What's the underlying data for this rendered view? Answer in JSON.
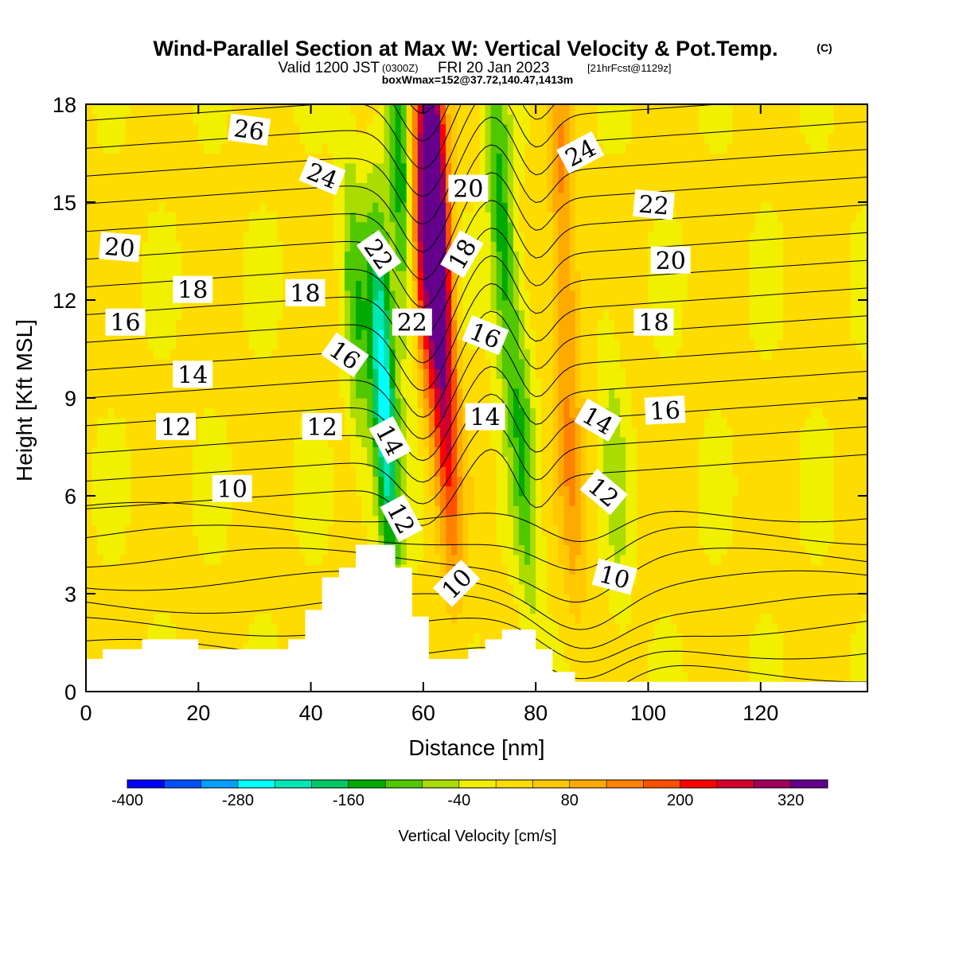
{
  "title": {
    "main": "Wind-Parallel Section at Max W: Vertical Velocity & Pot.Temp.",
    "copyright": "(C)",
    "valid_prefix": "Valid 1200 JST",
    "valid_utc": "(0300Z)",
    "valid_date": "FRI 20 Jan 2023",
    "fcst": "[21hrFcst@1129z]",
    "boxline": "boxWmax=152@37.72,140.47,1413m"
  },
  "chart_data": {
    "type": "heatmap",
    "xlabel": "Distance [nm]",
    "ylabel": "Height [Kft MSL]",
    "xlim": [
      0,
      139
    ],
    "ylim": [
      0,
      18
    ],
    "x_ticks": [
      0,
      20,
      40,
      60,
      80,
      100,
      120
    ],
    "y_ticks": [
      0,
      3,
      6,
      9,
      12,
      15,
      18
    ],
    "colorbar": {
      "label": "Vertical Velocity [cm/s]",
      "levels": [
        -400,
        -360,
        -320,
        -280,
        -240,
        -200,
        -160,
        -120,
        -80,
        -40,
        0,
        40,
        80,
        120,
        160,
        200,
        240,
        280,
        320,
        360
      ],
      "tick_labels": [
        "-400",
        "-280",
        "-160",
        "-40",
        "80",
        "200",
        "320"
      ],
      "colors": [
        "#0000ff",
        "#0050ff",
        "#00a0ff",
        "#00ffff",
        "#00e6b4",
        "#00c864",
        "#00aa00",
        "#50c800",
        "#aadc00",
        "#f0f000",
        "#ffdc00",
        "#ffc800",
        "#ffaa00",
        "#ff8200",
        "#ff5000",
        "#ff0000",
        "#d2002d",
        "#a0005a",
        "#64008c"
      ]
    },
    "w_features": [
      {
        "x": 48,
        "z": 11.5,
        "w": -110
      },
      {
        "x": 53,
        "z": 9,
        "w": -280
      },
      {
        "x": 56,
        "z": 16,
        "w": -170
      },
      {
        "x": 60,
        "z": 14,
        "w": 230
      },
      {
        "x": 62,
        "z": 16,
        "w": 360
      },
      {
        "x": 64,
        "z": 9,
        "w": 200
      },
      {
        "x": 74,
        "z": 14,
        "w": -150
      },
      {
        "x": 78,
        "z": 7,
        "w": -110
      },
      {
        "x": 85,
        "z": 15,
        "w": 110
      },
      {
        "x": 86,
        "z": 7,
        "w": 90
      },
      {
        "x": 94,
        "z": 7,
        "w": -60
      }
    ],
    "terrain": [
      [
        0,
        1
      ],
      [
        3,
        1
      ],
      [
        3,
        1.3
      ],
      [
        10,
        1.3
      ],
      [
        10,
        1.6
      ],
      [
        20,
        1.6
      ],
      [
        20,
        1.3
      ],
      [
        36,
        1.3
      ],
      [
        36,
        1.6
      ],
      [
        39,
        1.6
      ],
      [
        39,
        2.5
      ],
      [
        42,
        2.5
      ],
      [
        42,
        3.5
      ],
      [
        45,
        3.5
      ],
      [
        45,
        3.8
      ],
      [
        48,
        3.8
      ],
      [
        48,
        4.5
      ],
      [
        55,
        4.5
      ],
      [
        55,
        3.8
      ],
      [
        58,
        3.8
      ],
      [
        58,
        2.3
      ],
      [
        61,
        2.3
      ],
      [
        61,
        1
      ],
      [
        68,
        1
      ],
      [
        68,
        1.3
      ],
      [
        71,
        1.3
      ],
      [
        71,
        1.6
      ],
      [
        74,
        1.6
      ],
      [
        74,
        1.9
      ],
      [
        80,
        1.9
      ],
      [
        80,
        1.3
      ],
      [
        83,
        1.3
      ],
      [
        83,
        0.6
      ],
      [
        87,
        0.6
      ],
      [
        87,
        0.3
      ],
      [
        139,
        0.3
      ]
    ],
    "theta_levels": [
      9,
      10,
      11,
      12,
      13,
      14,
      15,
      16,
      17,
      18,
      19,
      20,
      21,
      22,
      23,
      24,
      25,
      26,
      27,
      28,
      29
    ],
    "contour_labels": [
      {
        "text": "26",
        "x": 29,
        "z": 17.2,
        "rot": 8
      },
      {
        "text": "24",
        "x": 42,
        "z": 15.8,
        "rot": 22
      },
      {
        "text": "24",
        "x": 88,
        "z": 16.5,
        "rot": -28
      },
      {
        "text": "22",
        "x": 52,
        "z": 13.4,
        "rot": 55
      },
      {
        "text": "20",
        "x": 68,
        "z": 15.4,
        "rot": 0
      },
      {
        "text": "18",
        "x": 67,
        "z": 13.4,
        "rot": -60
      },
      {
        "text": "22",
        "x": 101,
        "z": 14.9,
        "rot": 5
      },
      {
        "text": "20",
        "x": 6,
        "z": 13.6,
        "rot": 5
      },
      {
        "text": "20",
        "x": 104,
        "z": 13.2,
        "rot": 0
      },
      {
        "text": "18",
        "x": 19,
        "z": 12.3,
        "rot": 0
      },
      {
        "text": "18",
        "x": 39,
        "z": 12.2,
        "rot": 0
      },
      {
        "text": "22",
        "x": 58,
        "z": 11.3,
        "rot": 0
      },
      {
        "text": "16",
        "x": 71,
        "z": 10.9,
        "rot": 22
      },
      {
        "text": "18",
        "x": 101,
        "z": 11.3,
        "rot": 0
      },
      {
        "text": "16",
        "x": 7,
        "z": 11.3,
        "rot": 0
      },
      {
        "text": "16",
        "x": 46,
        "z": 10.3,
        "rot": 35
      },
      {
        "text": "14",
        "x": 19,
        "z": 9.7,
        "rot": 0
      },
      {
        "text": "14",
        "x": 71,
        "z": 8.4,
        "rot": 0
      },
      {
        "text": "14",
        "x": 91,
        "z": 8.3,
        "rot": 30
      },
      {
        "text": "16",
        "x": 103,
        "z": 8.6,
        "rot": -3
      },
      {
        "text": "12",
        "x": 16,
        "z": 8.1,
        "rot": 0
      },
      {
        "text": "12",
        "x": 42,
        "z": 8.1,
        "rot": 0
      },
      {
        "text": "14",
        "x": 54,
        "z": 7.7,
        "rot": 62
      },
      {
        "text": "10",
        "x": 26,
        "z": 6.2,
        "rot": 0
      },
      {
        "text": "12",
        "x": 56,
        "z": 5.3,
        "rot": 62
      },
      {
        "text": "12",
        "x": 92,
        "z": 6.1,
        "rot": 40
      },
      {
        "text": "10",
        "x": 66,
        "z": 3.3,
        "rot": -45
      },
      {
        "text": "10",
        "x": 94,
        "z": 3.5,
        "rot": 15
      }
    ]
  }
}
